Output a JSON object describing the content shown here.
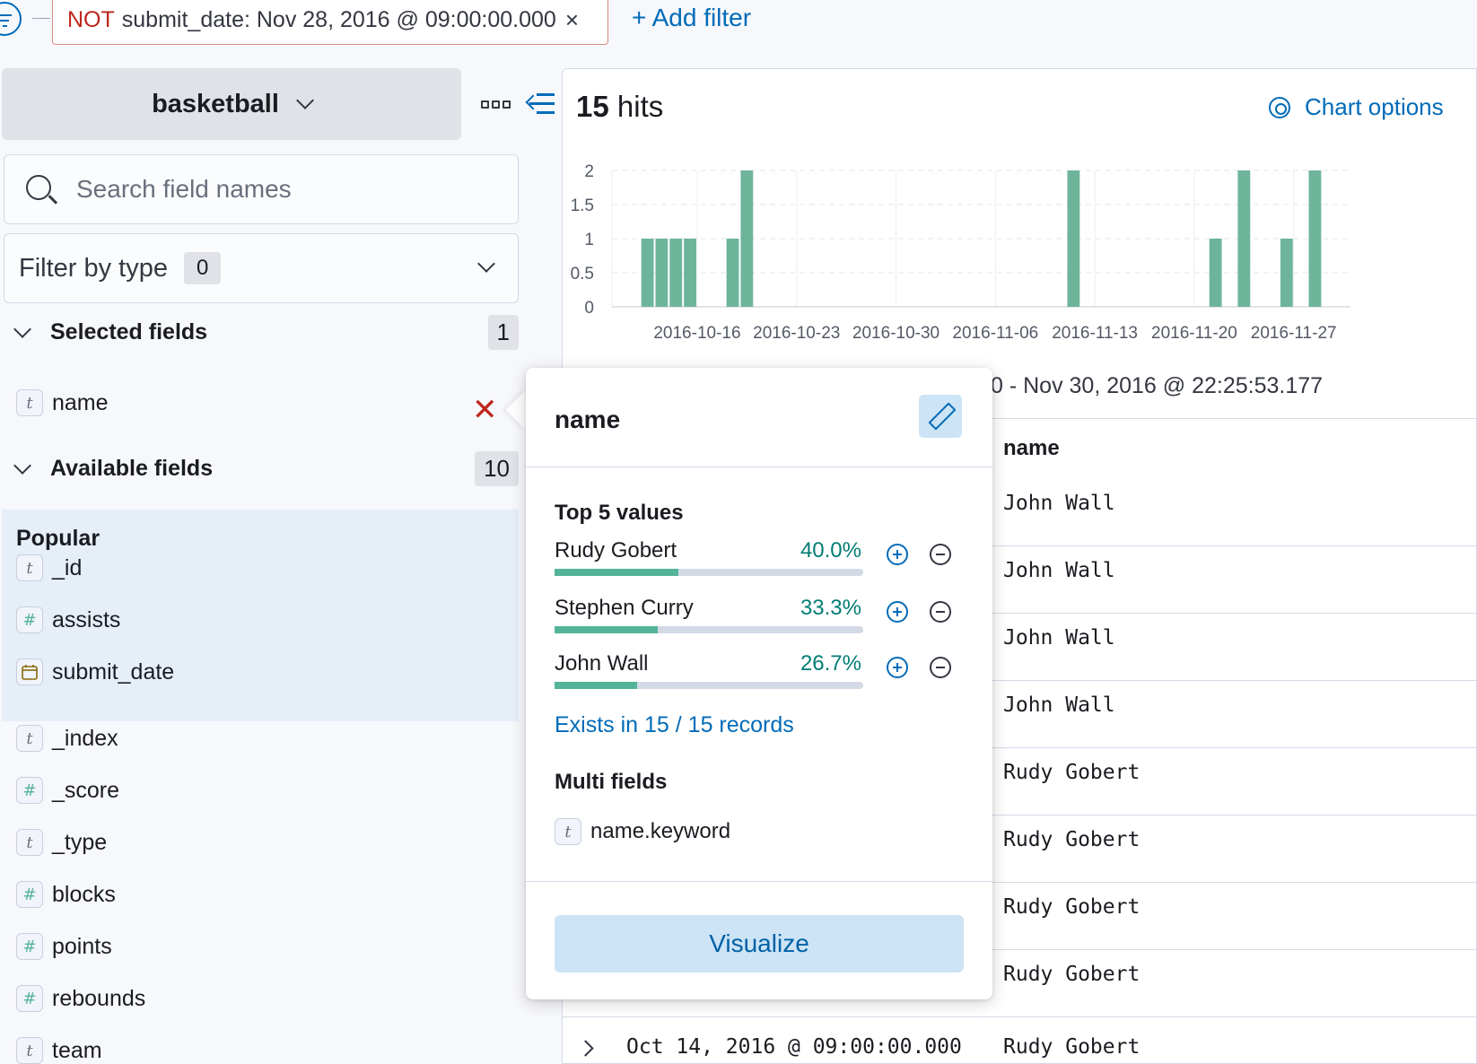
{
  "filter_bar": {
    "pill_negation": "NOT",
    "pill_value": "submit_date: Nov 28, 2016 @ 09:00:00.000",
    "pill_close": "×",
    "add_filter": "+ Add filter"
  },
  "sidebar": {
    "index_pattern": "basketball",
    "search_placeholder": "Search field names",
    "filter_by_type": "Filter by type",
    "filter_count": "0",
    "selected_fields_label": "Selected fields",
    "selected_fields_count": "1",
    "selected_fields": [
      {
        "name": "name",
        "type": "t"
      }
    ],
    "available_fields_label": "Available fields",
    "available_fields_count": "10",
    "popular_label": "Popular",
    "popular_fields": [
      {
        "name": "_id",
        "type": "t"
      },
      {
        "name": "assists",
        "type": "#"
      },
      {
        "name": "submit_date",
        "type": "date"
      }
    ],
    "other_fields": [
      {
        "name": "_index",
        "type": "t"
      },
      {
        "name": "_score",
        "type": "#"
      },
      {
        "name": "_type",
        "type": "t"
      },
      {
        "name": "blocks",
        "type": "#"
      },
      {
        "name": "points",
        "type": "#"
      },
      {
        "name": "rebounds",
        "type": "#"
      },
      {
        "name": "team",
        "type": "t"
      }
    ]
  },
  "main": {
    "hits_count": "15",
    "hits_label": "hits",
    "chart_options": "Chart options",
    "date_range_text": "0 - Nov 30, 2016 @ 22:25:53.177",
    "column_header": "name",
    "rows": [
      "John Wall",
      "John Wall",
      "John Wall",
      "John Wall",
      "Rudy Gobert",
      "Rudy Gobert",
      "Rudy Gobert",
      "Rudy Gobert",
      "Rudy Gobert"
    ],
    "last_row_date": "Oct 14, 2016 @ 09:00:00.000"
  },
  "chart_data": {
    "type": "bar",
    "y_ticks": [
      "2",
      "1.5",
      "1",
      "0.5",
      "0"
    ],
    "ylim": [
      0,
      2
    ],
    "x_tick_labels": [
      "2016-10-16",
      "2016-10-23",
      "2016-10-30",
      "2016-11-06",
      "2016-11-13",
      "2016-11-20",
      "2016-11-27"
    ],
    "x_tick_dates": [
      "2016-10-16",
      "2016-10-23",
      "2016-10-30",
      "2016-11-06",
      "2016-11-13",
      "2016-11-20",
      "2016-11-27"
    ],
    "xlim": [
      "2016-10-10",
      "2016-12-01"
    ],
    "bar_color": "#6db49a",
    "grid": true,
    "bars": [
      {
        "date": "2016-10-12",
        "value": 1
      },
      {
        "date": "2016-10-13",
        "value": 1
      },
      {
        "date": "2016-10-14",
        "value": 1
      },
      {
        "date": "2016-10-15",
        "value": 1
      },
      {
        "date": "2016-10-18",
        "value": 1
      },
      {
        "date": "2016-10-19",
        "value": 2
      },
      {
        "date": "2016-11-11",
        "value": 2
      },
      {
        "date": "2016-11-21",
        "value": 1
      },
      {
        "date": "2016-11-23",
        "value": 2
      },
      {
        "date": "2016-11-26",
        "value": 1
      },
      {
        "date": "2016-11-28",
        "value": 2
      }
    ]
  },
  "popover": {
    "title": "name",
    "top_values_label": "Top 5 values",
    "top_values": [
      {
        "name": "Rudy Gobert",
        "pct": "40.0%",
        "fraction": 0.4
      },
      {
        "name": "Stephen Curry",
        "pct": "33.3%",
        "fraction": 0.333
      },
      {
        "name": "John Wall",
        "pct": "26.7%",
        "fraction": 0.267
      }
    ],
    "exists_text": "Exists in 15 / 15 records",
    "multi_fields_label": "Multi fields",
    "multi_field": "name.keyword",
    "visualize": "Visualize"
  }
}
